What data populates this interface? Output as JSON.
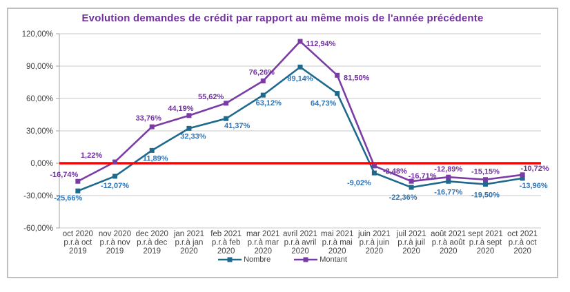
{
  "title": "Evolution demandes de crédit par rapport au même mois de l'année précédente",
  "chart_data": {
    "type": "line",
    "categories": [
      [
        "oct 2020",
        "p.r.à oct",
        "2019"
      ],
      [
        "nov 2020",
        "p.r.à nov",
        "2019"
      ],
      [
        "dec 2020",
        "p.r.à dec",
        "2019"
      ],
      [
        "jan 2021",
        "p.r.à jan",
        "2020"
      ],
      [
        "feb 2021",
        "p.r.à feb",
        "2020"
      ],
      [
        "mar 2021",
        "p.r.à mar",
        "2020"
      ],
      [
        "avril 2021",
        "p.r.à avril",
        "2020"
      ],
      [
        "mai 2021",
        "p.r.à mai",
        "2020"
      ],
      [
        "juin 2021",
        "p.r.à juin",
        "2020"
      ],
      [
        "juil 2021",
        "p.r.à juil",
        "2020"
      ],
      [
        "août 2021",
        "p.r.à août",
        "2020"
      ],
      [
        "sept 2021",
        "p.r.à sept",
        "2020"
      ],
      [
        "oct 2021",
        "p.r.à oct",
        "2020"
      ]
    ],
    "series": [
      {
        "name": "Nombre",
        "color": "#1D6A8C",
        "label_color": "#2E74B5",
        "values": [
          -25.66,
          -12.07,
          11.89,
          32.33,
          41.37,
          63.12,
          89.14,
          64.73,
          -9.02,
          -22.36,
          -16.77,
          -19.5,
          -13.96
        ],
        "labels": [
          "-25,66%",
          "-12,07%",
          "11,89%",
          "32,33%",
          "41,37%",
          "63,12%",
          "89,14%",
          "64,73%",
          "-9,02%",
          "-22,36%",
          "-16,77%",
          "-19,50%",
          "-13,96%"
        ]
      },
      {
        "name": "Montant",
        "color": "#7A3BA5",
        "label_color": "#7030A0",
        "values": [
          -16.74,
          1.22,
          33.76,
          44.19,
          55.62,
          76.26,
          112.94,
          81.5,
          -2.48,
          -16.71,
          -12.89,
          -15.15,
          -10.72
        ],
        "labels": [
          "-16,74%",
          "1,22%",
          "33,76%",
          "44,19%",
          "55,62%",
          "76,26%",
          "112,94%",
          "81,50%",
          "-2,48%",
          "-16,71%",
          "-12,89%",
          "-15,15%",
          "-10,72%"
        ]
      }
    ],
    "ylim": [
      -60,
      120
    ],
    "ytick_values": [
      120,
      90,
      60,
      30,
      0,
      -30,
      -60
    ],
    "ytick_labels": [
      "120,00%",
      "90,00%",
      "60,00%",
      "30,00%",
      "0,00%",
      "-30,00%",
      "-60,00%"
    ],
    "zero_line_value": 0,
    "zero_line_color": "#FE0000",
    "grid": true,
    "gridline_color": "#C9C9C9",
    "axis_color": "#A0A0A0",
    "legend_position": "bottom"
  }
}
